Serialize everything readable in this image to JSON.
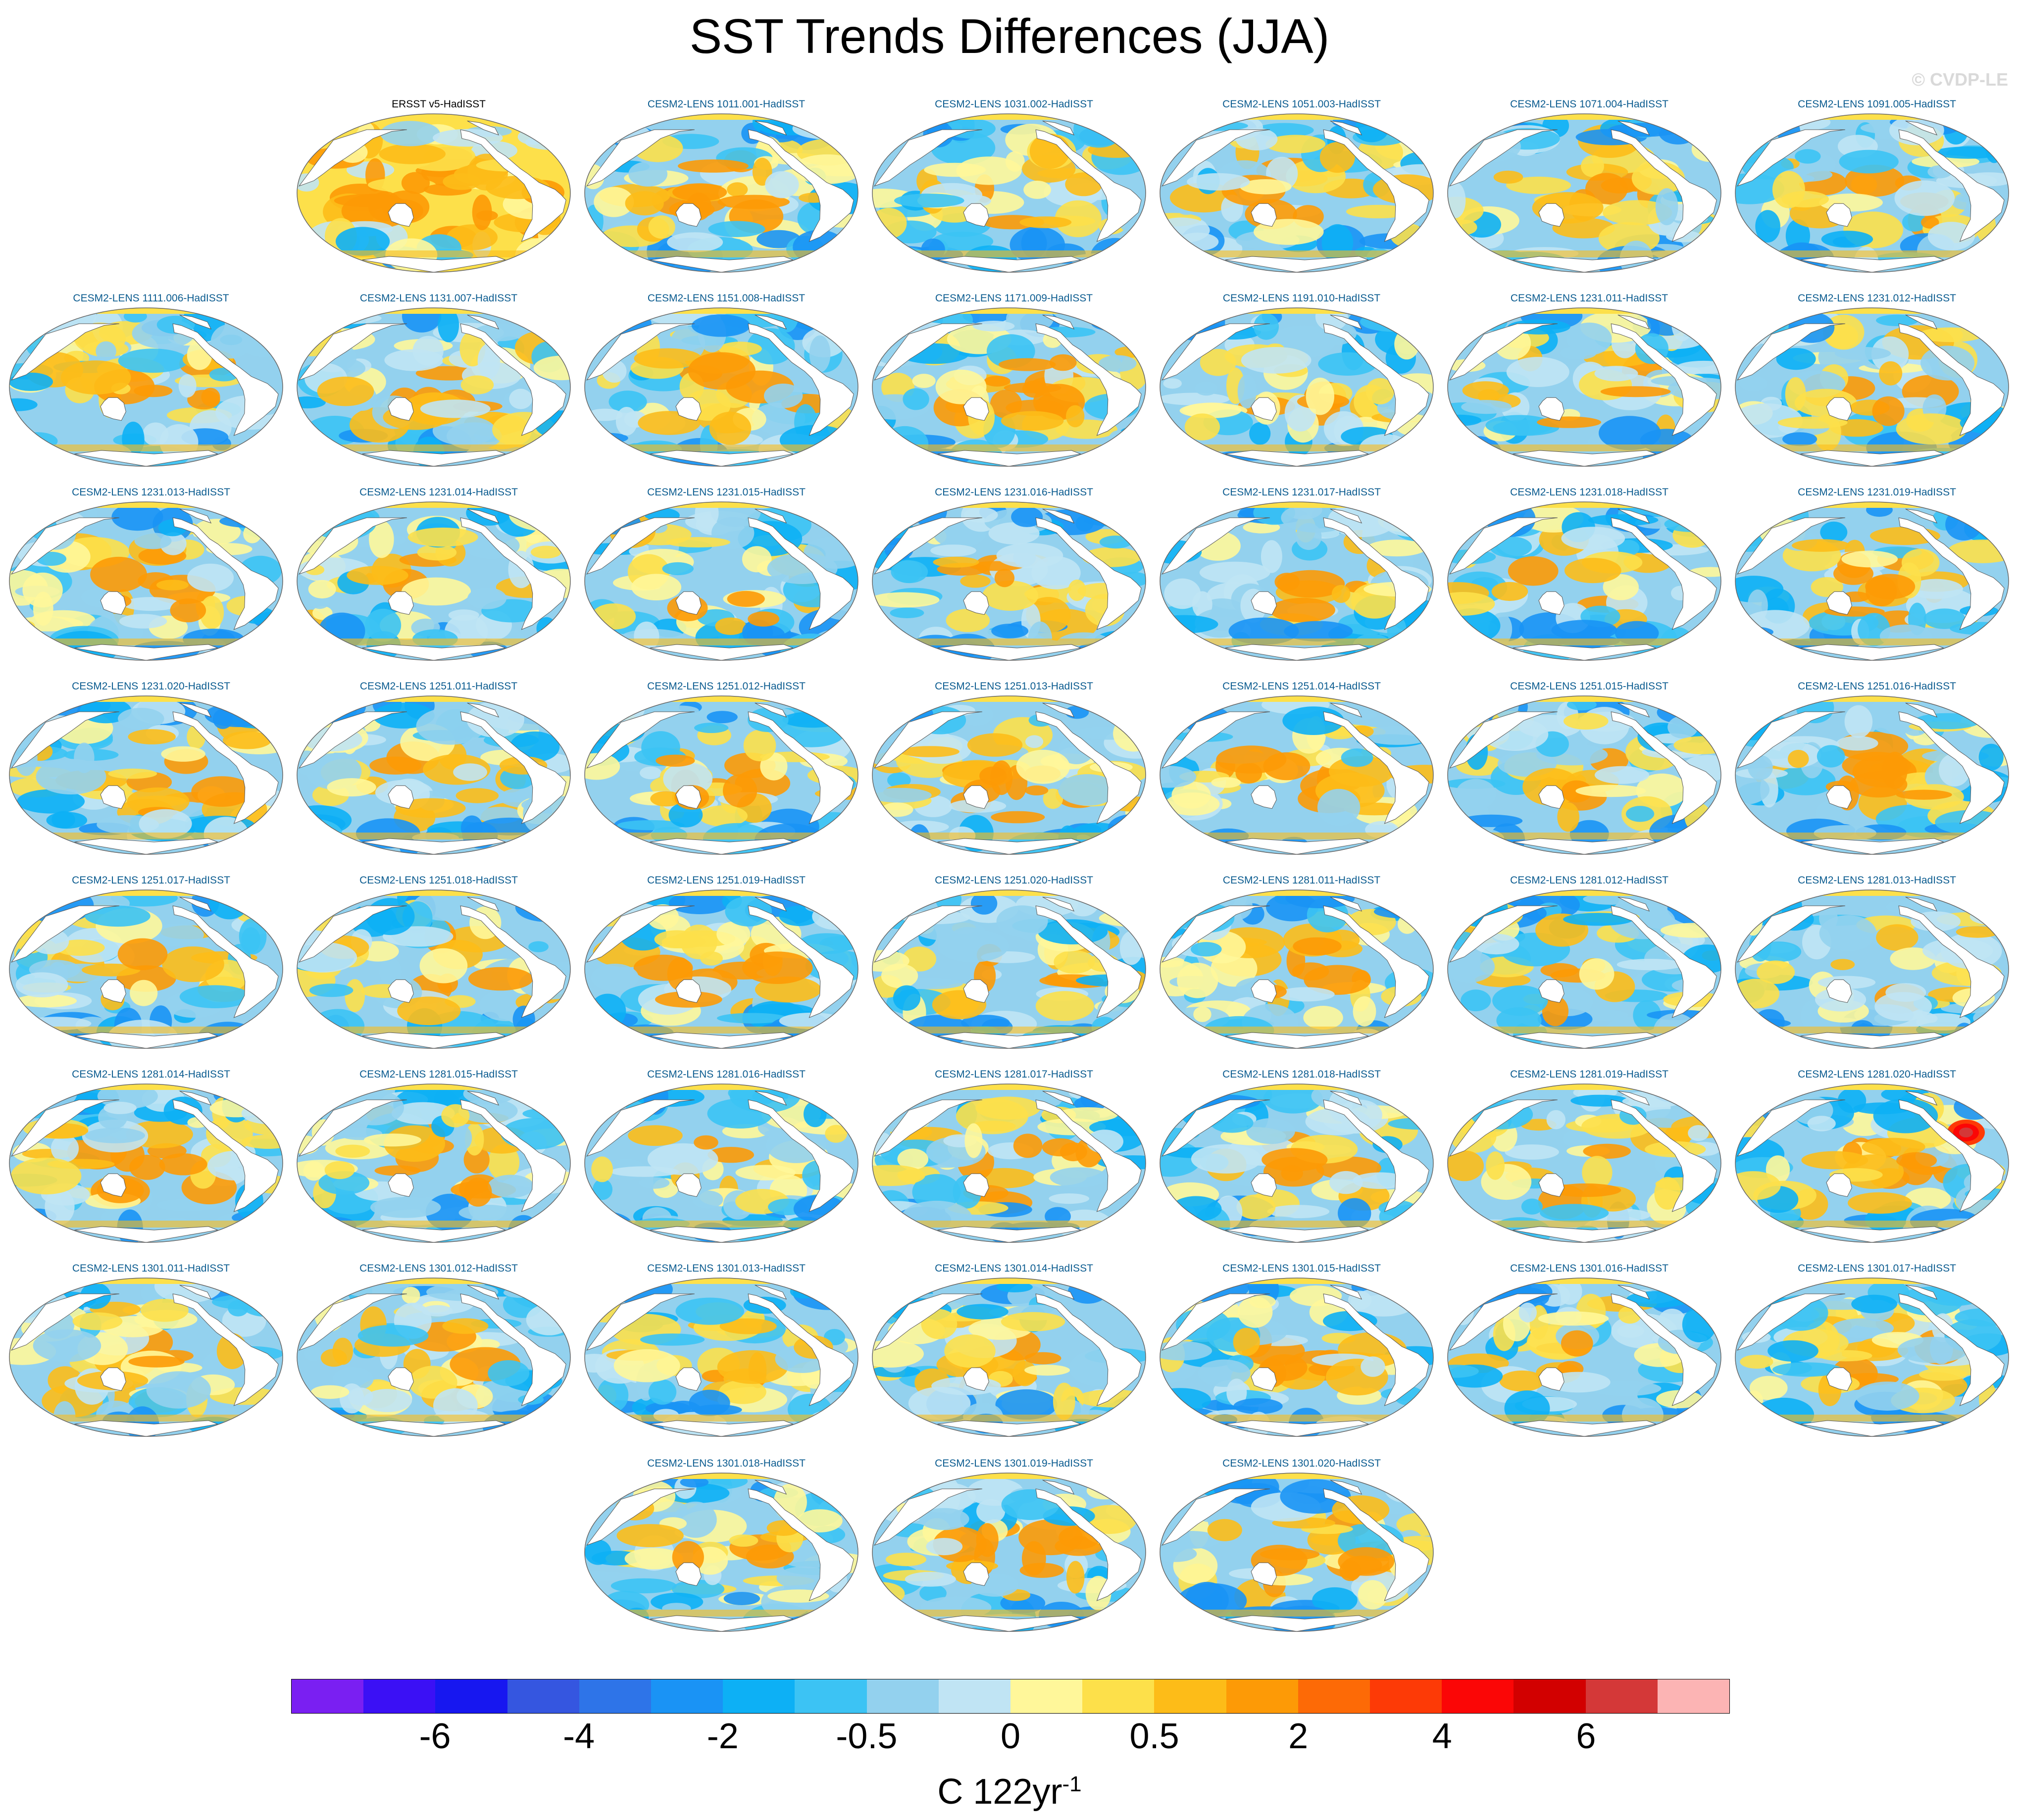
{
  "title": "SST Trends Differences (JJA)",
  "watermark": "© CVDP-LE",
  "units": {
    "base": "C 122yr",
    "exponent": "-1"
  },
  "chart_data": {
    "type": "heatmap",
    "title": "SST Trends Differences (JJA)",
    "season": "JJA",
    "map_projection": "Robinson (global, Pacific-centered)",
    "panel_grid": {
      "columns": 7,
      "rows": 8
    },
    "legend_placement": "bottom",
    "colorbar": {
      "colors": [
        "#7a1ff2",
        "#3b10f5",
        "#1717f0",
        "#3556e0",
        "#2e74e8",
        "#1a93f5",
        "#0db0f5",
        "#3cc3f4",
        "#93d1ee",
        "#c0e4f4",
        "#fff79a",
        "#fde04a",
        "#fdbc18",
        "#fd9a06",
        "#fd6a06",
        "#fd3a06",
        "#fb0606",
        "#d20000",
        "#d43838",
        "#fcb4b4"
      ],
      "tick_labels": [
        "-6",
        "-4",
        "-2",
        "-0.5",
        "0",
        "0.5",
        "2",
        "4",
        "6"
      ],
      "tick_boundary_index": [
        2,
        4,
        6,
        8,
        10,
        12,
        14,
        16,
        18
      ],
      "units_label": "C 122yr-1"
    },
    "panels": [
      {
        "row": 0,
        "col": 1,
        "label": "ERSST v5-HadISST",
        "observational": true,
        "seed": 1
      },
      {
        "row": 0,
        "col": 2,
        "label": "CESM2-LENS 1011.001-HadISST",
        "seed": 2
      },
      {
        "row": 0,
        "col": 3,
        "label": "CESM2-LENS 1031.002-HadISST",
        "seed": 3
      },
      {
        "row": 0,
        "col": 4,
        "label": "CESM2-LENS 1051.003-HadISST",
        "seed": 4
      },
      {
        "row": 0,
        "col": 5,
        "label": "CESM2-LENS 1071.004-HadISST",
        "seed": 5
      },
      {
        "row": 0,
        "col": 6,
        "label": "CESM2-LENS 1091.005-HadISST",
        "seed": 6
      },
      {
        "row": 1,
        "col": 0,
        "label": "CESM2-LENS 1111.006-HadISST",
        "seed": 7
      },
      {
        "row": 1,
        "col": 1,
        "label": "CESM2-LENS 1131.007-HadISST",
        "seed": 8
      },
      {
        "row": 1,
        "col": 2,
        "label": "CESM2-LENS 1151.008-HadISST",
        "seed": 9
      },
      {
        "row": 1,
        "col": 3,
        "label": "CESM2-LENS 1171.009-HadISST",
        "seed": 10
      },
      {
        "row": 1,
        "col": 4,
        "label": "CESM2-LENS 1191.010-HadISST",
        "seed": 11
      },
      {
        "row": 1,
        "col": 5,
        "label": "CESM2-LENS 1231.011-HadISST",
        "seed": 12
      },
      {
        "row": 1,
        "col": 6,
        "label": "CESM2-LENS 1231.012-HadISST",
        "seed": 13
      },
      {
        "row": 2,
        "col": 0,
        "label": "CESM2-LENS 1231.013-HadISST",
        "seed": 14
      },
      {
        "row": 2,
        "col": 1,
        "label": "CESM2-LENS 1231.014-HadISST",
        "seed": 15
      },
      {
        "row": 2,
        "col": 2,
        "label": "CESM2-LENS 1231.015-HadISST",
        "seed": 16
      },
      {
        "row": 2,
        "col": 3,
        "label": "CESM2-LENS 1231.016-HadISST",
        "seed": 17
      },
      {
        "row": 2,
        "col": 4,
        "label": "CESM2-LENS 1231.017-HadISST",
        "seed": 18
      },
      {
        "row": 2,
        "col": 5,
        "label": "CESM2-LENS 1231.018-HadISST",
        "seed": 19
      },
      {
        "row": 2,
        "col": 6,
        "label": "CESM2-LENS 1231.019-HadISST",
        "seed": 20
      },
      {
        "row": 3,
        "col": 0,
        "label": "CESM2-LENS 1231.020-HadISST",
        "seed": 21
      },
      {
        "row": 3,
        "col": 1,
        "label": "CESM2-LENS 1251.011-HadISST",
        "seed": 22
      },
      {
        "row": 3,
        "col": 2,
        "label": "CESM2-LENS 1251.012-HadISST",
        "seed": 23
      },
      {
        "row": 3,
        "col": 3,
        "label": "CESM2-LENS 1251.013-HadISST",
        "seed": 24
      },
      {
        "row": 3,
        "col": 4,
        "label": "CESM2-LENS 1251.014-HadISST",
        "seed": 25
      },
      {
        "row": 3,
        "col": 5,
        "label": "CESM2-LENS 1251.015-HadISST",
        "seed": 26
      },
      {
        "row": 3,
        "col": 6,
        "label": "CESM2-LENS 1251.016-HadISST",
        "seed": 27
      },
      {
        "row": 4,
        "col": 0,
        "label": "CESM2-LENS 1251.017-HadISST",
        "seed": 28
      },
      {
        "row": 4,
        "col": 1,
        "label": "CESM2-LENS 1251.018-HadISST",
        "seed": 29
      },
      {
        "row": 4,
        "col": 2,
        "label": "CESM2-LENS 1251.019-HadISST",
        "seed": 30
      },
      {
        "row": 4,
        "col": 3,
        "label": "CESM2-LENS 1251.020-HadISST",
        "seed": 31
      },
      {
        "row": 4,
        "col": 4,
        "label": "CESM2-LENS 1281.011-HadISST",
        "seed": 32
      },
      {
        "row": 4,
        "col": 5,
        "label": "CESM2-LENS 1281.012-HadISST",
        "seed": 33
      },
      {
        "row": 4,
        "col": 6,
        "label": "CESM2-LENS 1281.013-HadISST",
        "seed": 34
      },
      {
        "row": 5,
        "col": 0,
        "label": "CESM2-LENS 1281.014-HadISST",
        "seed": 35
      },
      {
        "row": 5,
        "col": 1,
        "label": "CESM2-LENS 1281.015-HadISST",
        "seed": 36
      },
      {
        "row": 5,
        "col": 2,
        "label": "CESM2-LENS 1281.016-HadISST",
        "seed": 37
      },
      {
        "row": 5,
        "col": 3,
        "label": "CESM2-LENS 1281.017-HadISST",
        "seed": 38
      },
      {
        "row": 5,
        "col": 4,
        "label": "CESM2-LENS 1281.018-HadISST",
        "seed": 39
      },
      {
        "row": 5,
        "col": 5,
        "label": "CESM2-LENS 1281.019-HadISST",
        "seed": 40
      },
      {
        "row": 5,
        "col": 6,
        "label": "CESM2-LENS 1281.020-HadISST",
        "seed": 41,
        "hotspot": "north-atlantic"
      },
      {
        "row": 6,
        "col": 0,
        "label": "CESM2-LENS 1301.011-HadISST",
        "seed": 42
      },
      {
        "row": 6,
        "col": 1,
        "label": "CESM2-LENS 1301.012-HadISST",
        "seed": 43
      },
      {
        "row": 6,
        "col": 2,
        "label": "CESM2-LENS 1301.013-HadISST",
        "seed": 44
      },
      {
        "row": 6,
        "col": 3,
        "label": "CESM2-LENS 1301.014-HadISST",
        "seed": 45
      },
      {
        "row": 6,
        "col": 4,
        "label": "CESM2-LENS 1301.015-HadISST",
        "seed": 46
      },
      {
        "row": 6,
        "col": 5,
        "label": "CESM2-LENS 1301.016-HadISST",
        "seed": 47
      },
      {
        "row": 6,
        "col": 6,
        "label": "CESM2-LENS 1301.017-HadISST",
        "seed": 48
      },
      {
        "row": 7,
        "col": 2,
        "label": "CESM2-LENS 1301.018-HadISST",
        "seed": 49
      },
      {
        "row": 7,
        "col": 3,
        "label": "CESM2-LENS 1301.019-HadISST",
        "seed": 50
      },
      {
        "row": 7,
        "col": 4,
        "label": "CESM2-LENS 1301.020-HadISST",
        "seed": 51
      }
    ]
  }
}
